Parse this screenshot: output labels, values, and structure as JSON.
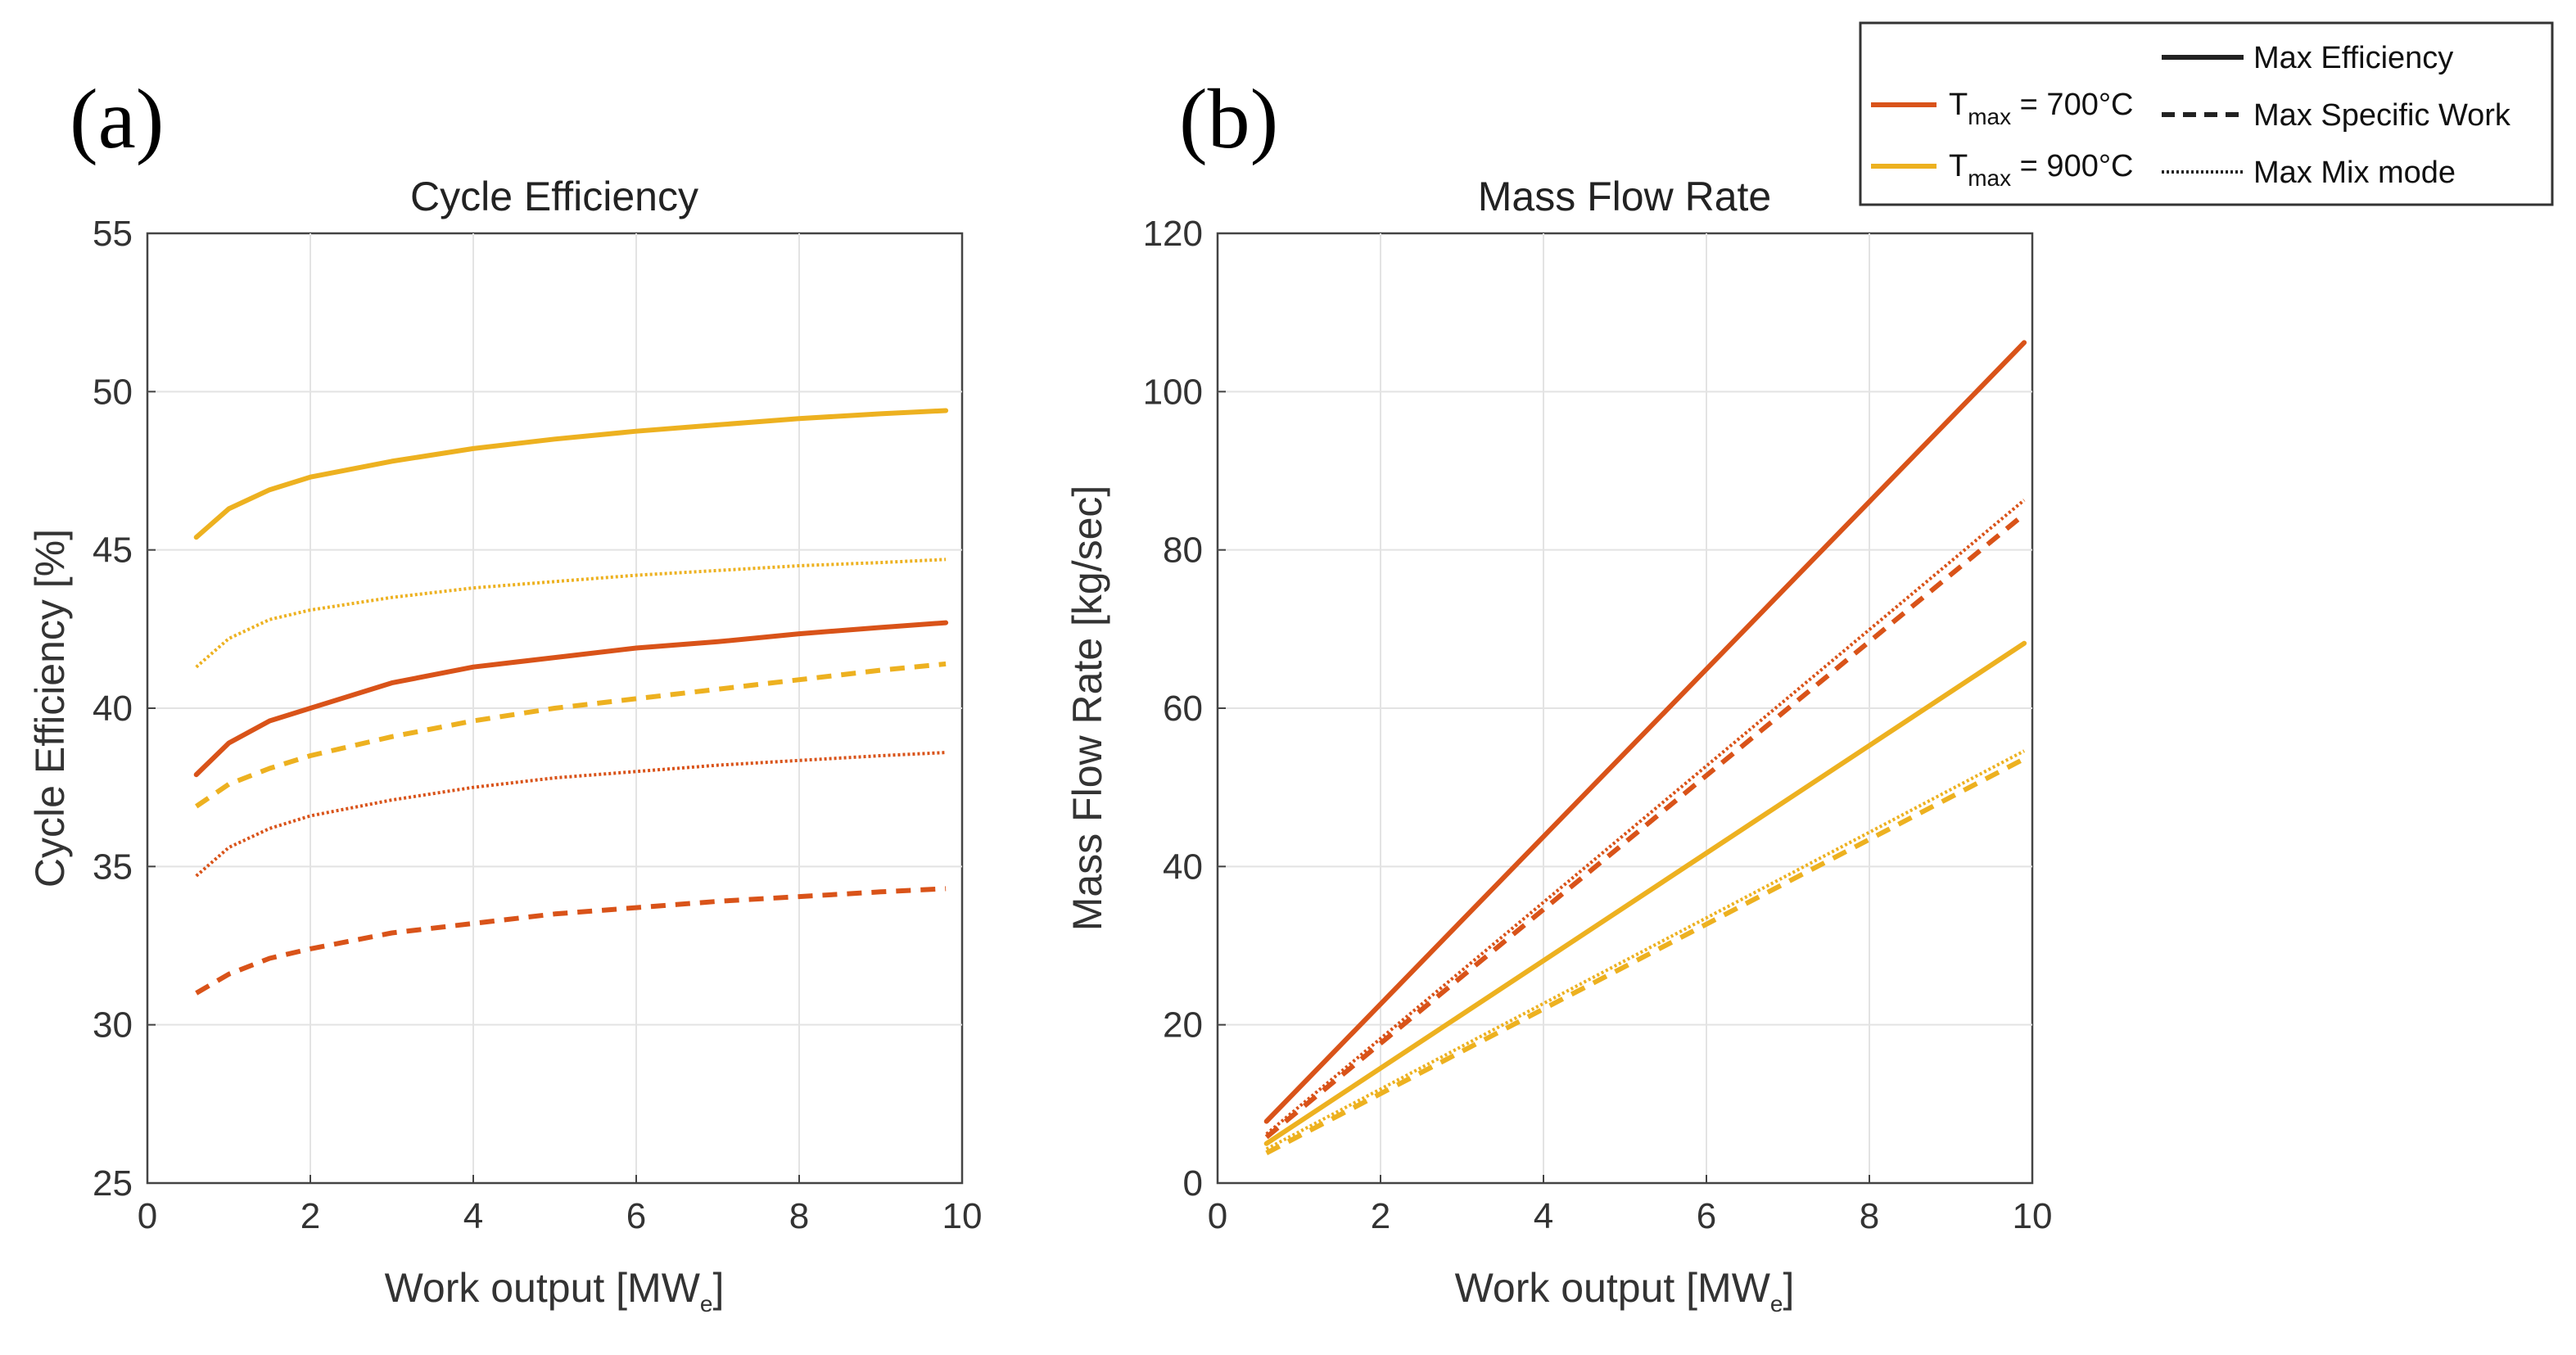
{
  "panels": {
    "a": {
      "letter": "(a)"
    },
    "b": {
      "letter": "(b)"
    }
  },
  "legend": {
    "style_entries": [
      {
        "label": "Max Efficiency",
        "dash": "solid"
      },
      {
        "label": "Max Specific Work",
        "dash": "dashed"
      },
      {
        "label": "Max Mix mode",
        "dash": "dotted"
      }
    ],
    "color_entries": [
      {
        "symbol": "T",
        "subscript": "max",
        "value": " = 700°C",
        "color": "#D95319"
      },
      {
        "symbol": "T",
        "subscript": "max",
        "value": " = 900°C",
        "color": "#EDB120"
      }
    ]
  },
  "chart_data": [
    {
      "id": "a",
      "type": "line",
      "title": "Cycle Efficiency",
      "xlabel": {
        "main": "Work output [MW",
        "sub": "e",
        "end": "]"
      },
      "ylabel": "Cycle Efficiency [%]",
      "xlim": [
        0,
        10
      ],
      "ylim": [
        25,
        55
      ],
      "xticks": [
        0,
        2,
        4,
        6,
        8,
        10
      ],
      "yticks": [
        25,
        30,
        35,
        40,
        45,
        50,
        55
      ],
      "grid": true,
      "series": [
        {
          "name": "Tmax = 900°C, Max Efficiency",
          "color": "#EDB120",
          "dash": "solid",
          "x": [
            0.6,
            1,
            1.5,
            2,
            3,
            4,
            5,
            6,
            7,
            8,
            9,
            9.8
          ],
          "y": [
            45.4,
            46.3,
            46.9,
            47.3,
            47.8,
            48.2,
            48.5,
            48.75,
            48.95,
            49.15,
            49.3,
            49.4
          ]
        },
        {
          "name": "Tmax = 900°C, Max Mix mode",
          "color": "#EDB120",
          "dash": "dotted",
          "x": [
            0.6,
            1,
            1.5,
            2,
            3,
            4,
            5,
            6,
            7,
            8,
            9,
            9.8
          ],
          "y": [
            41.3,
            42.2,
            42.8,
            43.1,
            43.5,
            43.8,
            44.0,
            44.2,
            44.35,
            44.5,
            44.6,
            44.7
          ]
        },
        {
          "name": "Tmax = 700°C, Max Efficiency",
          "color": "#D95319",
          "dash": "solid",
          "x": [
            0.6,
            1,
            1.5,
            2,
            3,
            4,
            5,
            6,
            7,
            8,
            9,
            9.8
          ],
          "y": [
            37.9,
            38.9,
            39.6,
            40.0,
            40.8,
            41.3,
            41.6,
            41.9,
            42.1,
            42.35,
            42.55,
            42.7
          ]
        },
        {
          "name": "Tmax = 900°C, Max Specific Work",
          "color": "#EDB120",
          "dash": "dashed",
          "x": [
            0.6,
            1,
            1.5,
            2,
            3,
            4,
            5,
            6,
            7,
            8,
            9,
            9.8
          ],
          "y": [
            36.9,
            37.6,
            38.1,
            38.5,
            39.1,
            39.6,
            40.0,
            40.3,
            40.6,
            40.9,
            41.2,
            41.4
          ]
        },
        {
          "name": "Tmax = 700°C, Max Mix mode",
          "color": "#D95319",
          "dash": "dotted",
          "x": [
            0.6,
            1,
            1.5,
            2,
            3,
            4,
            5,
            6,
            7,
            8,
            9,
            9.8
          ],
          "y": [
            34.7,
            35.6,
            36.2,
            36.6,
            37.1,
            37.5,
            37.8,
            38.0,
            38.2,
            38.35,
            38.5,
            38.6
          ]
        },
        {
          "name": "Tmax = 700°C, Max Specific Work",
          "color": "#D95319",
          "dash": "dashed",
          "x": [
            0.6,
            1,
            1.5,
            2,
            3,
            4,
            5,
            6,
            7,
            8,
            9,
            9.8
          ],
          "y": [
            31.0,
            31.6,
            32.1,
            32.4,
            32.9,
            33.2,
            33.5,
            33.7,
            33.9,
            34.05,
            34.2,
            34.3
          ]
        }
      ]
    },
    {
      "id": "b",
      "type": "line",
      "title": "Mass Flow Rate",
      "xlabel": {
        "main": "Work output [MW",
        "sub": "e",
        "end": "]"
      },
      "ylabel": "Mass Flow Rate [kg/sec]",
      "xlim": [
        0,
        10
      ],
      "ylim": [
        0,
        120
      ],
      "xticks": [
        0,
        2,
        4,
        6,
        8,
        10
      ],
      "yticks": [
        0,
        20,
        40,
        60,
        80,
        100,
        120
      ],
      "grid": true,
      "series": [
        {
          "name": "Tmax = 700°C, Max Efficiency",
          "color": "#D95319",
          "dash": "solid",
          "x": [
            0.6,
            9.9
          ],
          "y": [
            7.8,
            106.2
          ]
        },
        {
          "name": "Tmax = 700°C, Max Mix mode",
          "color": "#D95319",
          "dash": "dotted",
          "x": [
            0.6,
            9.9
          ],
          "y": [
            6.2,
            86.3
          ]
        },
        {
          "name": "Tmax = 700°C, Max Specific Work",
          "color": "#D95319",
          "dash": "dashed",
          "x": [
            0.6,
            9.9
          ],
          "y": [
            5.8,
            84.5
          ]
        },
        {
          "name": "Tmax = 900°C, Max Efficiency",
          "color": "#EDB120",
          "dash": "solid",
          "x": [
            0.6,
            9.9
          ],
          "y": [
            5.0,
            68.2
          ]
        },
        {
          "name": "Tmax = 900°C, Max Mix mode",
          "color": "#EDB120",
          "dash": "dotted",
          "x": [
            0.6,
            9.9
          ],
          "y": [
            4.3,
            54.6
          ]
        },
        {
          "name": "Tmax = 900°C, Max Specific Work",
          "color": "#EDB120",
          "dash": "dashed",
          "x": [
            0.6,
            9.9
          ],
          "y": [
            3.8,
            53.6
          ]
        }
      ]
    }
  ]
}
